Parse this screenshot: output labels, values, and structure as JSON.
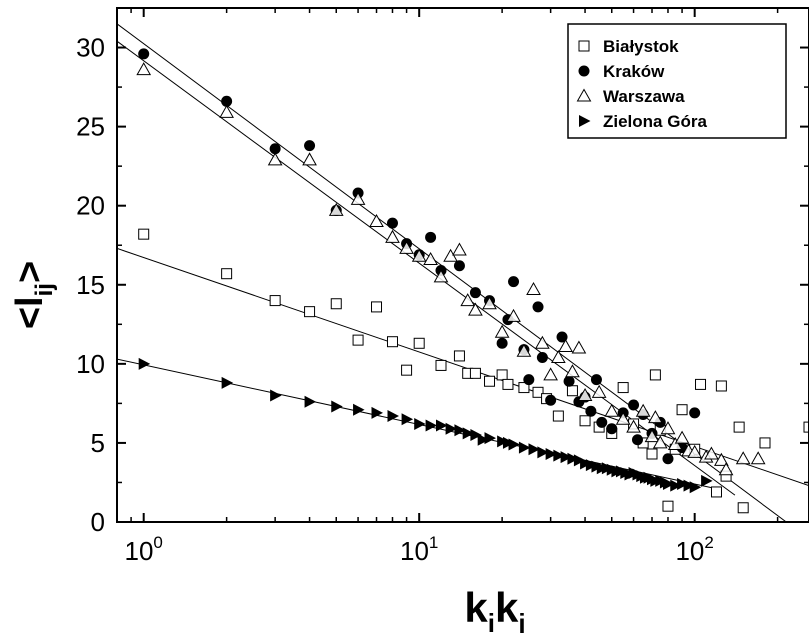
{
  "chart_data": {
    "type": "scatter",
    "x_scale": "log",
    "xlim": [
      0.8,
      260
    ],
    "ylim": [
      0,
      32.5
    ],
    "ylabel": "<l_ij>",
    "ylabel_parts": {
      "angle": "<",
      "letter": "l",
      "sub": "ij",
      "close": ">"
    },
    "xlabel": "k_i k_j",
    "xlabel_parts": {
      "k1": "k",
      "s1": "i",
      "k2": "k",
      "s2": "j"
    },
    "y_ticks": [
      0,
      5,
      10,
      15,
      20,
      25,
      30
    ],
    "y_tick_labels": [
      "0",
      "5",
      "10",
      "15",
      "20",
      "25",
      "30"
    ],
    "x_ticks": [
      {
        "value": 1,
        "base": "10",
        "exp": "0"
      },
      {
        "value": 10,
        "base": "10",
        "exp": "1"
      },
      {
        "value": 100,
        "base": "10",
        "exp": "2"
      }
    ],
    "legend_position": "top-right",
    "series": [
      {
        "name": "Białystok",
        "marker": "open-square",
        "points": [
          [
            1,
            18.2
          ],
          [
            2,
            15.7
          ],
          [
            3,
            14
          ],
          [
            4,
            13.3
          ],
          [
            5,
            13.8
          ],
          [
            6,
            11.5
          ],
          [
            7,
            13.6
          ],
          [
            8,
            11.4
          ],
          [
            9,
            9.6
          ],
          [
            10,
            11.3
          ],
          [
            12,
            9.9
          ],
          [
            14,
            10.5
          ],
          [
            15,
            9.4
          ],
          [
            16,
            9.4
          ],
          [
            18,
            8.9
          ],
          [
            20,
            9.3
          ],
          [
            21,
            8.7
          ],
          [
            24,
            8.5
          ],
          [
            27,
            8.2
          ],
          [
            29,
            7.8
          ],
          [
            32,
            6.7
          ],
          [
            36,
            8.3
          ],
          [
            40,
            6.4
          ],
          [
            45,
            6
          ],
          [
            50,
            5.6
          ],
          [
            55,
            8.5
          ],
          [
            60,
            6.2
          ],
          [
            65,
            5
          ],
          [
            70,
            4.3
          ],
          [
            72,
            9.3
          ],
          [
            75,
            5.8
          ],
          [
            80,
            1
          ],
          [
            85,
            4.6
          ],
          [
            90,
            7.1
          ],
          [
            100,
            4.6
          ],
          [
            105,
            8.7
          ],
          [
            120,
            1.9
          ],
          [
            125,
            8.6
          ],
          [
            130,
            2.9
          ],
          [
            145,
            6
          ],
          [
            150,
            0.9
          ],
          [
            180,
            5
          ],
          [
            260,
            6
          ]
        ]
      },
      {
        "name": "Kraków",
        "marker": "filled-circle",
        "points": [
          [
            1,
            29.6
          ],
          [
            2,
            26.6
          ],
          [
            3,
            23.6
          ],
          [
            4,
            23.8
          ],
          [
            5,
            19.7
          ],
          [
            6,
            20.8
          ],
          [
            8,
            18.9
          ],
          [
            9,
            17.6
          ],
          [
            10,
            16.9
          ],
          [
            11,
            18
          ],
          [
            12,
            15.9
          ],
          [
            14,
            16.2
          ],
          [
            16,
            14.5
          ],
          [
            18,
            14
          ],
          [
            20,
            11.3
          ],
          [
            21,
            12.8
          ],
          [
            22,
            15.2
          ],
          [
            24,
            10.9
          ],
          [
            25,
            9
          ],
          [
            27,
            13.6
          ],
          [
            28,
            10.4
          ],
          [
            30,
            7.7
          ],
          [
            33,
            11.7
          ],
          [
            35,
            8.9
          ],
          [
            38,
            7.6
          ],
          [
            40,
            7.9
          ],
          [
            42,
            7
          ],
          [
            44,
            9
          ],
          [
            46,
            6.3
          ],
          [
            50,
            5.9
          ],
          [
            55,
            6.9
          ],
          [
            60,
            7.4
          ],
          [
            62,
            5.2
          ],
          [
            65,
            6.8
          ],
          [
            70,
            5.6
          ],
          [
            75,
            6.3
          ],
          [
            80,
            4
          ],
          [
            90,
            4.7
          ],
          [
            100,
            6.9
          ]
        ]
      },
      {
        "name": "Warszawa",
        "marker": "open-triangle",
        "points": [
          [
            1,
            28.6
          ],
          [
            2,
            25.9
          ],
          [
            3,
            22.9
          ],
          [
            4,
            22.9
          ],
          [
            5,
            19.7
          ],
          [
            6,
            20.4
          ],
          [
            7,
            19
          ],
          [
            8,
            18
          ],
          [
            9,
            17.3
          ],
          [
            10,
            16.8
          ],
          [
            11,
            16.6
          ],
          [
            12,
            15.5
          ],
          [
            13,
            16.8
          ],
          [
            14,
            17.2
          ],
          [
            15,
            14
          ],
          [
            16,
            13.4
          ],
          [
            18,
            13.8
          ],
          [
            20,
            12
          ],
          [
            22,
            13
          ],
          [
            24,
            10.8
          ],
          [
            26,
            14.7
          ],
          [
            28,
            11.3
          ],
          [
            30,
            9.3
          ],
          [
            32,
            10.4
          ],
          [
            34,
            11.1
          ],
          [
            36,
            9.5
          ],
          [
            38,
            11
          ],
          [
            40,
            8
          ],
          [
            45,
            8.2
          ],
          [
            50,
            7
          ],
          [
            55,
            6.5
          ],
          [
            60,
            6
          ],
          [
            65,
            7
          ],
          [
            70,
            5.4
          ],
          [
            72,
            6.6
          ],
          [
            75,
            5
          ],
          [
            80,
            5.9
          ],
          [
            85,
            4.9
          ],
          [
            90,
            5.3
          ],
          [
            95,
            4.5
          ],
          [
            100,
            4.4
          ],
          [
            110,
            4.1
          ],
          [
            115,
            4.3
          ],
          [
            125,
            3.9
          ],
          [
            130,
            3.3
          ],
          [
            150,
            4
          ],
          [
            170,
            4
          ]
        ]
      },
      {
        "name": "Zielona Góra",
        "marker": "filled-right-triangle",
        "points": [
          [
            1,
            10
          ],
          [
            2,
            8.8
          ],
          [
            3,
            8
          ],
          [
            4,
            7.6
          ],
          [
            5,
            7.3
          ],
          [
            6,
            7.1
          ],
          [
            7,
            6.9
          ],
          [
            8,
            6.7
          ],
          [
            9,
            6.5
          ],
          [
            10,
            6.2
          ],
          [
            11,
            6.1
          ],
          [
            12,
            6.1
          ],
          [
            13,
            5.9
          ],
          [
            14,
            5.8
          ],
          [
            15,
            5.6
          ],
          [
            16,
            5.5
          ],
          [
            17,
            5.2
          ],
          [
            18,
            5.3
          ],
          [
            20,
            5.1
          ],
          [
            21,
            5
          ],
          [
            22,
            4.9
          ],
          [
            24,
            4.7
          ],
          [
            26,
            4.6
          ],
          [
            28,
            4.4
          ],
          [
            30,
            4.3
          ],
          [
            32,
            4.2
          ],
          [
            34,
            4.1
          ],
          [
            36,
            4
          ],
          [
            38,
            3.9
          ],
          [
            40,
            3.7
          ],
          [
            42,
            3.6
          ],
          [
            44,
            3.5
          ],
          [
            46,
            3.4
          ],
          [
            48,
            3.4
          ],
          [
            50,
            3.3
          ],
          [
            52,
            3.2
          ],
          [
            54,
            3.2
          ],
          [
            56,
            3.1
          ],
          [
            58,
            3
          ],
          [
            60,
            3.1
          ],
          [
            62,
            3
          ],
          [
            64,
            2.9
          ],
          [
            66,
            2.8
          ],
          [
            68,
            2.8
          ],
          [
            70,
            2.7
          ],
          [
            72,
            2.6
          ],
          [
            75,
            2.6
          ],
          [
            78,
            2.5
          ],
          [
            80,
            2.4
          ],
          [
            85,
            2.3
          ],
          [
            90,
            2.4
          ],
          [
            95,
            2.3
          ],
          [
            100,
            2.2
          ],
          [
            110,
            2.6
          ]
        ]
      }
    ],
    "fit_lines": [
      {
        "for": "Kraków",
        "x": [
          0.8,
          215
        ],
        "y": [
          31.5,
          0
        ]
      },
      {
        "for": "Warszawa",
        "x": [
          0.8,
          140
        ],
        "y": [
          30.4,
          1.7
        ]
      },
      {
        "for": "Białystok",
        "x": [
          0.8,
          260
        ],
        "y": [
          17.3,
          2.3
        ]
      },
      {
        "for": "Zielona Góra",
        "x": [
          0.8,
          120
        ],
        "y": [
          10.3,
          2.1
        ]
      }
    ]
  }
}
